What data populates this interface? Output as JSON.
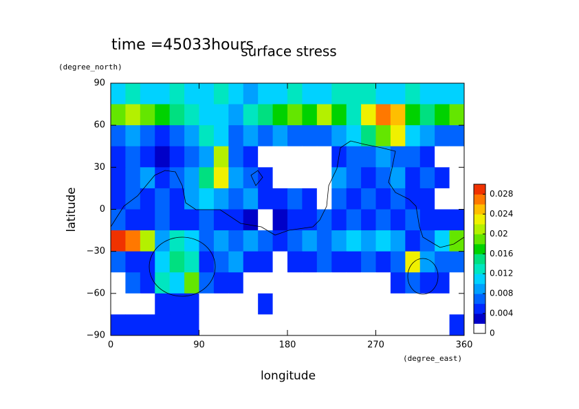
{
  "chart_data": {
    "type": "contour",
    "title": "surface stress",
    "annotation": "time =45033hours",
    "x_label": "longitude",
    "y_label": "latitude",
    "x_units": "(degree_east)",
    "y_units": "(degree_north)",
    "xlim": [
      0,
      360
    ],
    "ylim": [
      -90,
      90
    ],
    "xticks": [
      0,
      90,
      180,
      270,
      360
    ],
    "yticks": [
      {
        "value": -90,
        "label": "−90"
      },
      {
        "value": -60,
        "label": "−60"
      },
      {
        "value": -30,
        "label": "−30"
      },
      0,
      30,
      60,
      90
    ],
    "x": [
      7.5,
      22.5,
      37.5,
      52.5,
      67.5,
      82.5,
      97.5,
      112.5,
      127.5,
      142.5,
      157.5,
      172.5,
      187.5,
      202.5,
      217.5,
      232.5,
      247.5,
      262.5,
      277.5,
      292.5,
      307.5,
      322.5,
      337.5,
      352.5
    ],
    "y": [
      82.5,
      67.5,
      52.5,
      37.5,
      22.5,
      7.5,
      -7.5,
      -22.5,
      -37.5,
      -52.5,
      -67.5,
      -82.5
    ],
    "z": [
      [
        0.01,
        0.012,
        0.01,
        0.01,
        0.012,
        0.01,
        0.01,
        0.012,
        0.01,
        0.008,
        0.01,
        0.01,
        0.012,
        0.01,
        0.01,
        0.012,
        0.012,
        0.012,
        0.01,
        0.01,
        0.012,
        0.01,
        0.01,
        0.01
      ],
      [
        0.018,
        0.02,
        0.018,
        0.016,
        0.014,
        0.012,
        0.01,
        0.01,
        0.008,
        0.012,
        0.014,
        0.016,
        0.018,
        0.016,
        0.02,
        0.016,
        0.012,
        0.022,
        0.026,
        0.024,
        0.016,
        0.014,
        0.016,
        0.018
      ],
      [
        0.006,
        0.008,
        0.006,
        0.004,
        0.006,
        0.008,
        0.012,
        0.01,
        0.006,
        0.008,
        0.006,
        0.008,
        0.006,
        0.006,
        0.006,
        0.008,
        0.01,
        0.014,
        0.018,
        0.022,
        0.01,
        0.008,
        0.006,
        0.006
      ],
      [
        0.004,
        0.006,
        0.004,
        0.002,
        0.004,
        0.006,
        0.008,
        0.02,
        0.006,
        0.004,
        0.001,
        0.001,
        0.001,
        0.001,
        0.001,
        0.004,
        0.006,
        0.006,
        0.008,
        0.006,
        0.006,
        0.004,
        0.001,
        0.001
      ],
      [
        0.004,
        0.006,
        0.008,
        0.004,
        0.006,
        0.008,
        0.014,
        0.022,
        0.008,
        0.006,
        0.004,
        0.001,
        0.001,
        0.001,
        0.001,
        0.008,
        0.006,
        0.004,
        0.006,
        0.008,
        0.004,
        0.006,
        0.004,
        0.001
      ],
      [
        0.004,
        0.006,
        0.004,
        0.006,
        0.004,
        0.008,
        0.01,
        0.008,
        0.006,
        0.008,
        0.004,
        0.004,
        0.006,
        0.004,
        0.001,
        0.006,
        0.004,
        0.006,
        0.004,
        0.006,
        0.004,
        0.004,
        0.001,
        0.001
      ],
      [
        0.006,
        0.004,
        0.004,
        0.006,
        0.004,
        0.004,
        0.006,
        0.004,
        0.004,
        0.002,
        0.001,
        0.002,
        0.004,
        0.004,
        0.006,
        0.004,
        0.006,
        0.004,
        0.006,
        0.004,
        0.006,
        0.004,
        0.004,
        0.004
      ],
      [
        0.028,
        0.026,
        0.02,
        0.008,
        0.012,
        0.01,
        0.006,
        0.008,
        0.006,
        0.008,
        0.006,
        0.004,
        0.006,
        0.008,
        0.006,
        0.008,
        0.01,
        0.008,
        0.01,
        0.008,
        0.004,
        0.006,
        0.01,
        0.018
      ],
      [
        0.006,
        0.004,
        0.004,
        0.01,
        0.014,
        0.012,
        0.004,
        0.006,
        0.008,
        0.004,
        0.004,
        0.001,
        0.004,
        0.004,
        0.006,
        0.004,
        0.004,
        0.006,
        0.004,
        0.006,
        0.022,
        0.008,
        0.006,
        0.006
      ],
      [
        0.001,
        0.006,
        0.004,
        0.012,
        0.01,
        0.018,
        0.006,
        0.004,
        0.004,
        0.001,
        0.001,
        0.001,
        0.001,
        0.001,
        0.001,
        0.001,
        0.001,
        0.001,
        0.001,
        0.004,
        0.006,
        0.004,
        0.004,
        0.001
      ],
      [
        0.001,
        0.001,
        0.001,
        0.004,
        0.004,
        0.004,
        0.001,
        0.001,
        0.001,
        0.001,
        0.004,
        0.001,
        0.001,
        0.001,
        0.001,
        0.001,
        0.001,
        0.001,
        0.001,
        0.001,
        0.001,
        0.001,
        0.001,
        0.001
      ],
      [
        0.004,
        0.004,
        0.004,
        0.004,
        0.004,
        0.004,
        0.001,
        0.001,
        0.001,
        0.001,
        0.001,
        0.001,
        0.001,
        0.001,
        0.001,
        0.001,
        0.001,
        0.001,
        0.001,
        0.001,
        0.001,
        0.001,
        0.001,
        0.004
      ]
    ],
    "levels": [
      0,
      0.002,
      0.004,
      0.006,
      0.008,
      0.01,
      0.012,
      0.014,
      0.016,
      0.018,
      0.02,
      0.022,
      0.024,
      0.026,
      0.028,
      0.03
    ],
    "colors": [
      "#ffffff",
      "#0000c8",
      "#0028ff",
      "#0064ff",
      "#00a0ff",
      "#00d2ff",
      "#00e6c0",
      "#00e080",
      "#00d200",
      "#64e600",
      "#b4f000",
      "#f0f000",
      "#ffbe00",
      "#ff7800",
      "#f03200"
    ],
    "clim": [
      0,
      0.03
    ],
    "cticks": [
      0,
      0.004,
      0.008,
      0.012,
      0.016,
      0.02,
      0.024,
      0.028
    ]
  }
}
